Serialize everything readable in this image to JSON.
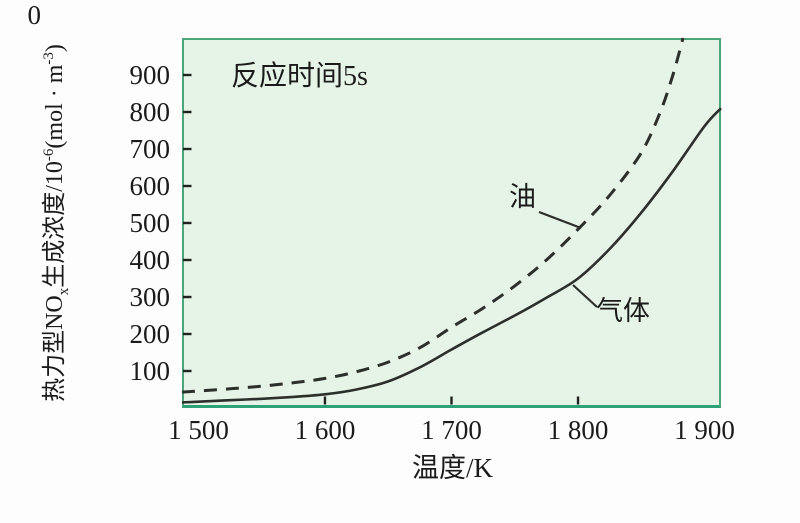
{
  "page": {
    "background": "#ffffff"
  },
  "chart": {
    "annotation": "反应时间5s",
    "series_labels": {
      "oil": "油",
      "gas": "气体"
    },
    "x_axis": {
      "title": "温度/K",
      "ticks": [
        {
          "value": 1500,
          "label": "1 500",
          "mark": false
        },
        {
          "value": 1600,
          "label": "1 600",
          "mark": true
        },
        {
          "value": 1700,
          "label": "1 700",
          "mark": true
        },
        {
          "value": 1800,
          "label": "1 800",
          "mark": true
        },
        {
          "value": 1900,
          "label": "1 900",
          "mark": false
        }
      ]
    },
    "y_axis": {
      "origin_label": "0",
      "title_segments": [
        {
          "t": "热力型NO"
        },
        {
          "t": "x",
          "s": "sub"
        },
        {
          "t": "生成浓度/10"
        },
        {
          "t": "-6",
          "s": "sup"
        },
        {
          "t": "(mol · m"
        },
        {
          "t": "-3",
          "s": "sup"
        },
        {
          "t": ")"
        }
      ],
      "ticks": [
        {
          "value": 100,
          "label": "100"
        },
        {
          "value": 200,
          "label": "200"
        },
        {
          "value": 300,
          "label": "300"
        },
        {
          "value": 400,
          "label": "400"
        },
        {
          "value": 500,
          "label": "500"
        },
        {
          "value": 600,
          "label": "600"
        },
        {
          "value": 700,
          "label": "700"
        },
        {
          "value": 800,
          "label": "800"
        },
        {
          "value": 900,
          "label": "900"
        }
      ]
    },
    "colors": {
      "plot_bg": "#e6f3e7",
      "plot_border": "#4ea57a",
      "plot_border_bottom": "#2ea277",
      "curve": "#2c2f2c",
      "tick": "#1f221f",
      "text": "#1b1b1b"
    }
  },
  "chart_data": {
    "type": "line",
    "title": "",
    "annotation": "反应时间5s",
    "xlabel": "温度/K",
    "ylabel": "热力型NOx生成浓度/10^-6 (mol·m^-3)",
    "xlim": [
      1487,
      1913
    ],
    "ylim": [
      0,
      1000
    ],
    "x_ticks": [
      1500,
      1600,
      1700,
      1800,
      1900
    ],
    "y_ticks": [
      0,
      100,
      200,
      300,
      400,
      500,
      600,
      700,
      800,
      900
    ],
    "grid": false,
    "legend": "inline-labels",
    "series": [
      {
        "name": "油",
        "fuel": "oil",
        "style": "dashed",
        "points": [
          [
            1487,
            43
          ],
          [
            1500,
            46
          ],
          [
            1525,
            52
          ],
          [
            1550,
            59
          ],
          [
            1575,
            68
          ],
          [
            1600,
            80
          ],
          [
            1625,
            98
          ],
          [
            1650,
            124
          ],
          [
            1675,
            163
          ],
          [
            1700,
            218
          ],
          [
            1725,
            270
          ],
          [
            1750,
            330
          ],
          [
            1775,
            400
          ],
          [
            1800,
            483
          ],
          [
            1825,
            575
          ],
          [
            1850,
            690
          ],
          [
            1865,
            800
          ],
          [
            1875,
            900
          ],
          [
            1883,
            1000
          ]
        ]
      },
      {
        "name": "气体",
        "fuel": "gas",
        "style": "solid",
        "points": [
          [
            1487,
            15
          ],
          [
            1500,
            17
          ],
          [
            1525,
            21
          ],
          [
            1550,
            25
          ],
          [
            1575,
            30
          ],
          [
            1600,
            37
          ],
          [
            1625,
            50
          ],
          [
            1650,
            72
          ],
          [
            1675,
            110
          ],
          [
            1700,
            158
          ],
          [
            1725,
            205
          ],
          [
            1750,
            250
          ],
          [
            1775,
            298
          ],
          [
            1800,
            350
          ],
          [
            1825,
            430
          ],
          [
            1850,
            528
          ],
          [
            1875,
            640
          ],
          [
            1900,
            762
          ],
          [
            1913,
            810
          ]
        ]
      }
    ]
  }
}
